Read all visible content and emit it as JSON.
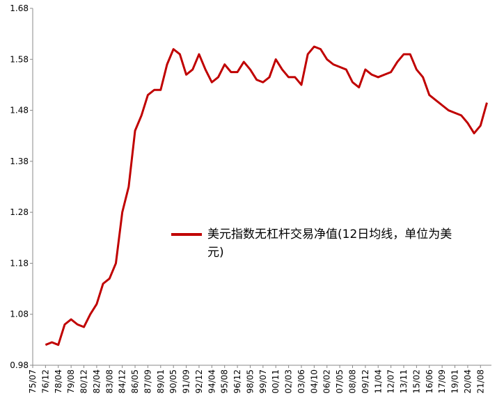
{
  "chart_data": {
    "type": "line",
    "categories": [
      "75/07",
      null,
      "76/12",
      null,
      "78/04",
      null,
      "79/08",
      null,
      "80/12",
      null,
      "82/04",
      null,
      "83/08",
      null,
      "84/12",
      null,
      "86/05",
      null,
      "87/09",
      null,
      "89/01",
      null,
      "90/05",
      null,
      "91/09",
      null,
      "92/12",
      null,
      "94/04",
      null,
      "95/08",
      null,
      "96/12",
      null,
      "98/05",
      null,
      "99/07",
      null,
      "00/11",
      null,
      "02/03",
      null,
      "03/06",
      null,
      "04/10",
      null,
      "06/02",
      null,
      "07/05",
      null,
      "08/08",
      null,
      "09/12",
      null,
      "11/04",
      null,
      "12/07",
      null,
      "13/11",
      null,
      "15/02",
      null,
      "16/06",
      null,
      "17/09",
      null,
      "19/01",
      null,
      "20/04",
      null,
      "21/08",
      null
    ],
    "series": [
      {
        "name": "美元指数无杠杆交易净值(12日均线，单位为美元)",
        "color": "#c00000",
        "values": [
          null,
          null,
          1.02,
          1.025,
          1.02,
          1.06,
          1.07,
          1.06,
          1.055,
          1.08,
          1.1,
          1.14,
          1.15,
          1.18,
          1.28,
          1.33,
          1.44,
          1.47,
          1.51,
          1.52,
          1.52,
          1.57,
          1.6,
          1.59,
          1.55,
          1.56,
          1.59,
          1.56,
          1.535,
          1.545,
          1.57,
          1.555,
          1.555,
          1.575,
          1.56,
          1.54,
          1.535,
          1.545,
          1.58,
          1.56,
          1.545,
          1.545,
          1.53,
          1.59,
          1.605,
          1.6,
          1.58,
          1.57,
          1.565,
          1.56,
          1.535,
          1.525,
          1.56,
          1.55,
          1.545,
          1.55,
          1.555,
          1.575,
          1.59,
          1.59,
          1.56,
          1.545,
          1.51,
          1.5,
          1.49,
          1.48,
          1.475,
          1.47,
          1.455,
          1.435,
          1.45,
          1.495
        ]
      }
    ],
    "ylim": [
      0.98,
      1.68
    ],
    "yticks": [
      0.98,
      1.08,
      1.18,
      1.28,
      1.38,
      1.48,
      1.58,
      1.68
    ],
    "grid": false
  }
}
